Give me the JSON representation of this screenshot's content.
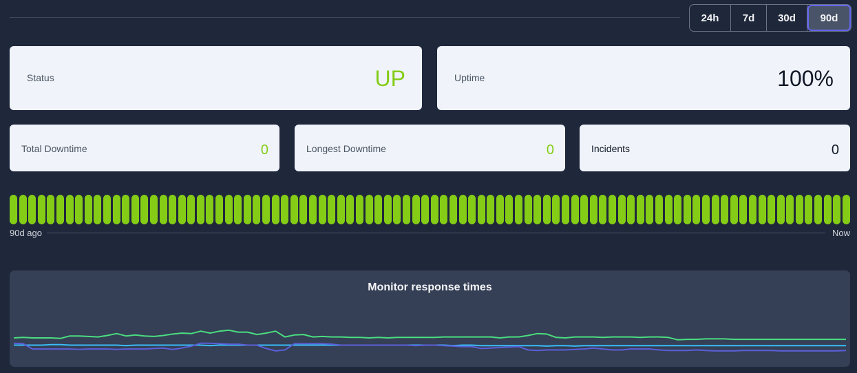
{
  "range_selector": {
    "options": [
      "24h",
      "7d",
      "30d",
      "90d"
    ],
    "selected": "90d"
  },
  "cards": {
    "status": {
      "label": "Status",
      "value": "UP"
    },
    "uptime": {
      "label": "Uptime",
      "value": "100%"
    },
    "total_downtime": {
      "label": "Total Downtime",
      "value": "0"
    },
    "longest_downtime": {
      "label": "Longest Downtime",
      "value": "0"
    },
    "incidents": {
      "label": "Incidents",
      "value": "0"
    }
  },
  "status_bar": {
    "count": 90,
    "status": "up",
    "start_label": "90d ago",
    "end_label": "Now"
  },
  "colors": {
    "up": "#84cc16",
    "series_green": "#4ade80",
    "series_lightblue": "#38bdf8",
    "series_indigo": "#5b5fd8",
    "accent": "#6366f1"
  },
  "chart_data": {
    "type": "line",
    "title": "Monitor response times",
    "xlabel": "",
    "ylabel": "",
    "ylim": [
      0,
      100
    ],
    "series": [
      {
        "color": "#4ade80",
        "values": [
          60,
          61,
          60,
          60,
          60,
          59,
          64,
          64,
          63,
          62,
          65,
          69,
          64,
          66,
          64,
          63,
          65,
          68,
          70,
          69,
          74,
          70,
          74,
          76,
          72,
          72,
          67,
          70,
          74,
          62,
          66,
          67,
          62,
          63,
          62,
          62,
          61,
          61,
          60,
          61,
          60,
          61,
          61,
          61,
          61,
          61,
          62,
          62,
          62,
          62,
          62,
          62,
          60,
          62,
          62,
          65,
          69,
          68,
          61,
          60,
          62,
          62,
          62,
          61,
          62,
          62,
          62,
          61,
          62,
          62,
          61,
          56,
          57,
          57,
          58,
          58,
          58,
          57,
          57,
          57,
          57,
          57,
          57,
          57,
          57,
          57,
          57,
          57,
          57,
          57
        ]
      },
      {
        "color": "#38bdf8",
        "values": [
          45,
          45,
          45,
          45,
          46,
          46,
          45,
          45,
          45,
          45,
          45,
          45,
          44,
          45,
          45,
          45,
          45,
          45,
          45,
          45,
          45,
          44,
          45,
          45,
          45,
          45,
          45,
          45,
          45,
          45,
          45,
          45,
          45,
          45,
          45,
          45,
          45,
          45,
          45,
          45,
          45,
          45,
          45,
          45,
          45,
          45,
          45,
          44,
          45,
          45,
          44,
          44,
          44,
          44,
          44,
          44,
          44,
          43,
          44,
          44,
          43,
          44,
          44,
          44,
          44,
          44,
          44,
          44,
          44,
          44,
          44,
          44,
          44,
          44,
          44,
          44,
          44,
          44,
          44,
          44,
          44,
          44,
          44,
          44,
          44,
          44,
          44,
          44,
          44,
          44
        ]
      },
      {
        "color": "#5b5fd8",
        "values": [
          49,
          48,
          37,
          37,
          37,
          37,
          37,
          36,
          37,
          37,
          37,
          36,
          37,
          37,
          37,
          38,
          39,
          36,
          39,
          43,
          49,
          49,
          48,
          47,
          47,
          45,
          45,
          38,
          33,
          35,
          48,
          48,
          48,
          48,
          47,
          45,
          45,
          45,
          45,
          45,
          45,
          45,
          45,
          44,
          45,
          45,
          44,
          43,
          42,
          42,
          38,
          39,
          40,
          41,
          42,
          35,
          34,
          35,
          35,
          35,
          36,
          37,
          39,
          37,
          35,
          35,
          37,
          37,
          37,
          35,
          34,
          34,
          34,
          35,
          34,
          33,
          33,
          33,
          34,
          34,
          34,
          34,
          33,
          33,
          33,
          33,
          33,
          33,
          33,
          34
        ]
      }
    ]
  }
}
